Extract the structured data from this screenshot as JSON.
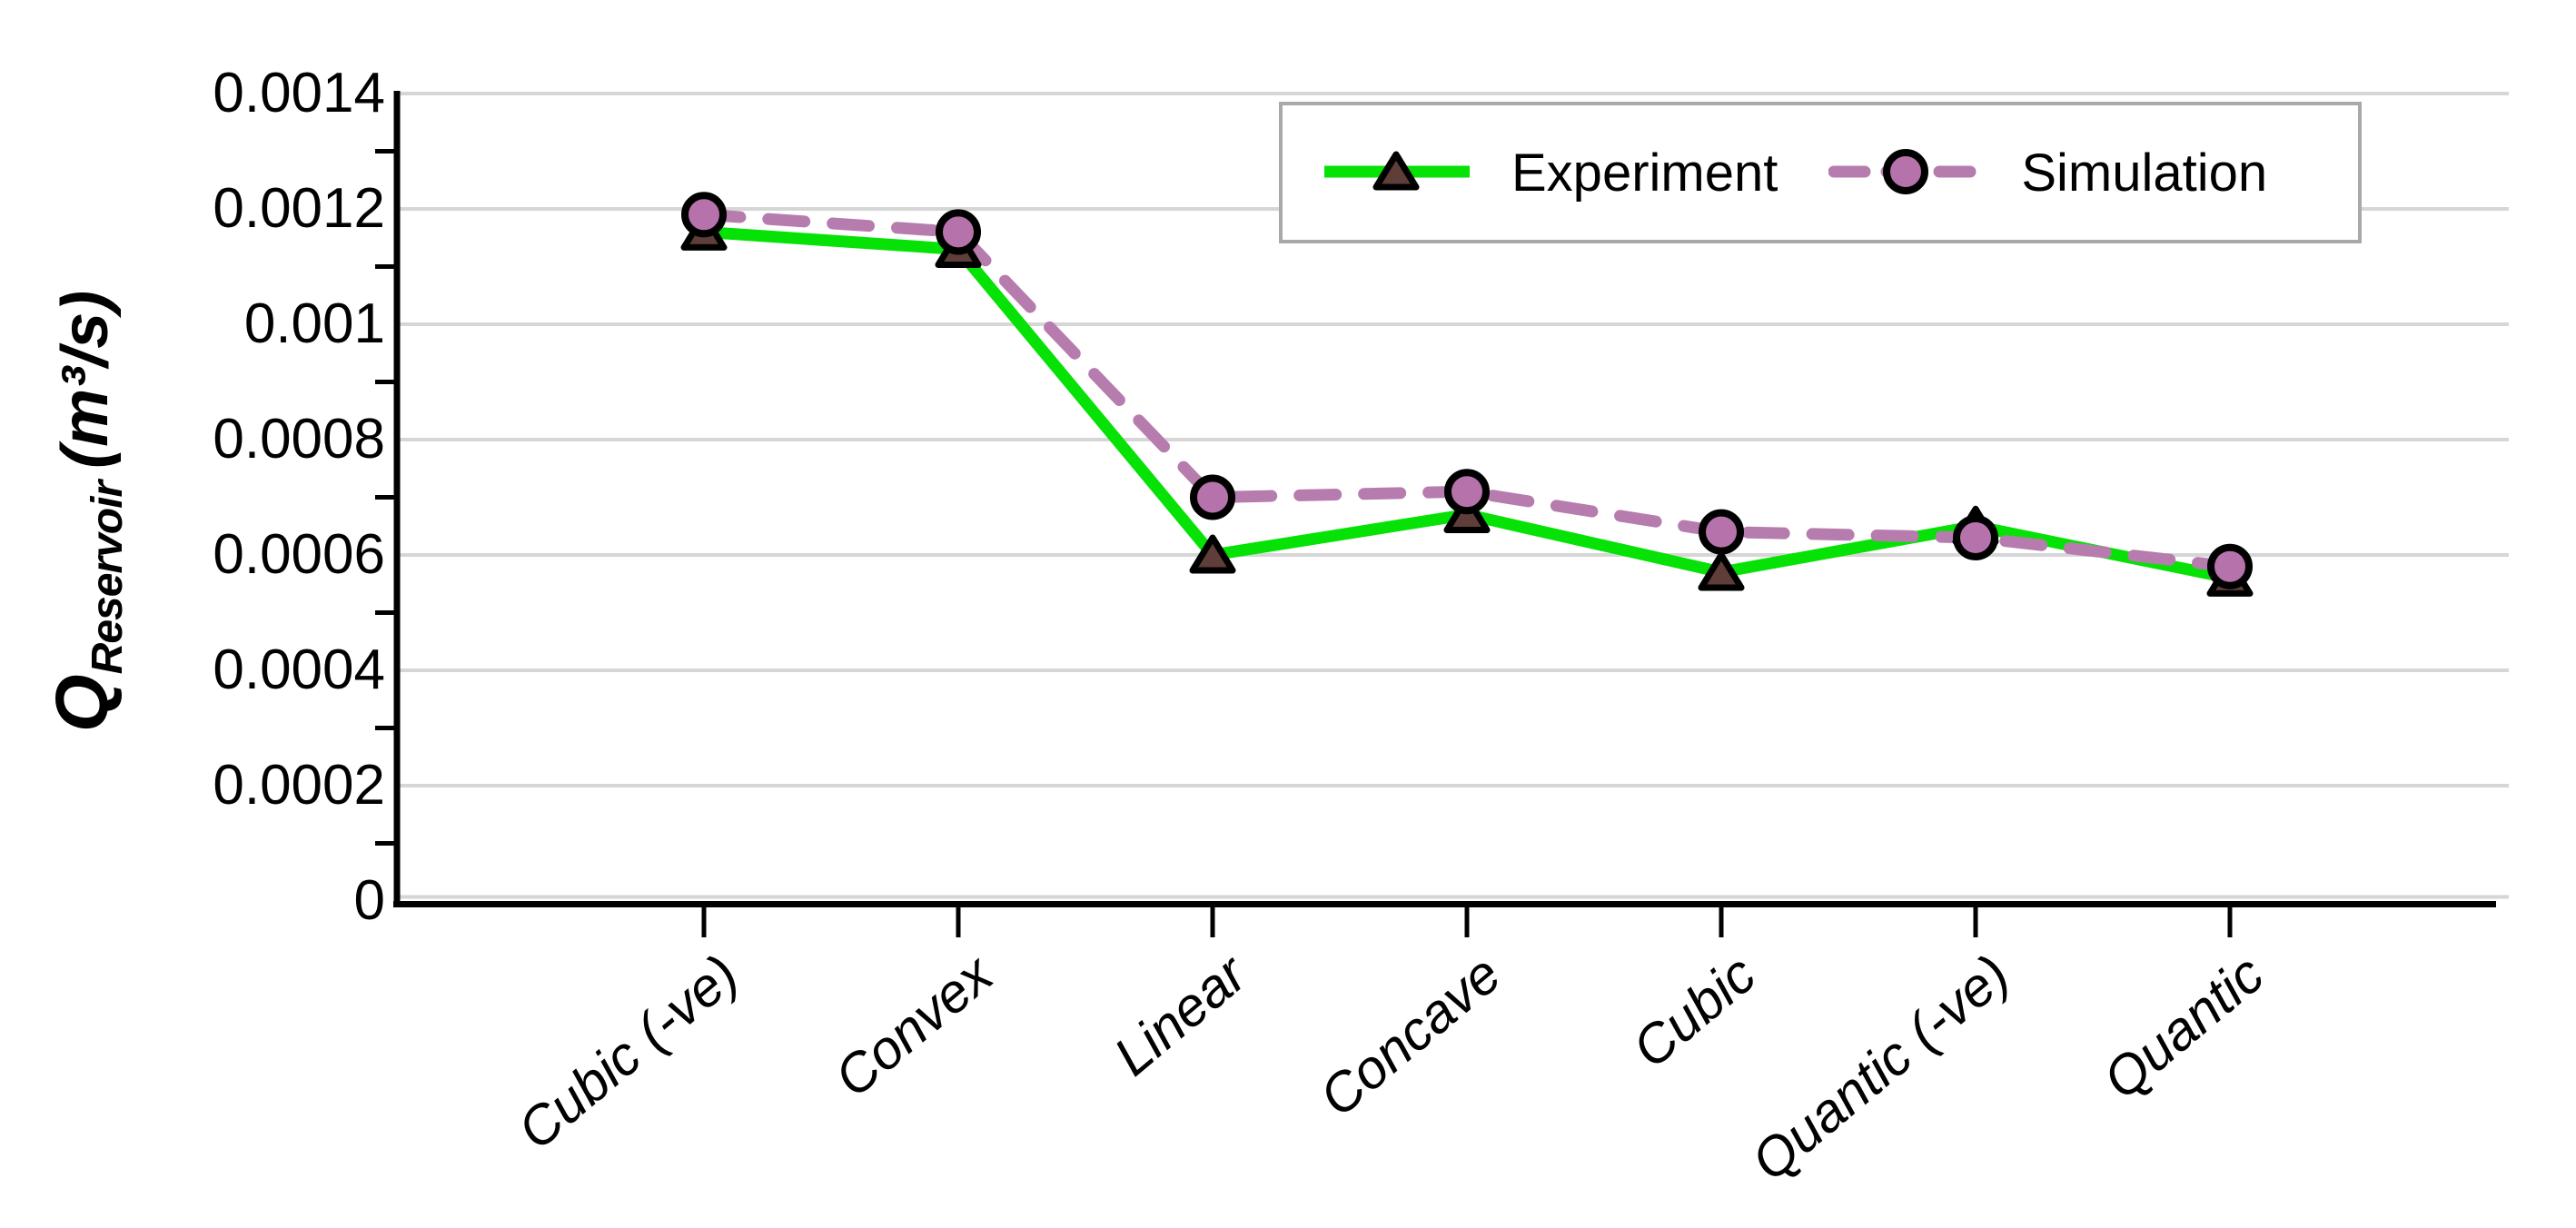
{
  "chart_data": {
    "type": "line",
    "title": "",
    "y_axis": {
      "label_main": "Q",
      "label_sub": "Reservoir",
      "label_units": "(m³/s)",
      "ylim": [
        0,
        0.0014
      ],
      "ticks": [
        0,
        0.0002,
        0.0004,
        0.0006,
        0.0008,
        0.001,
        0.0012,
        0.0014
      ],
      "tick_labels": [
        "0",
        "0.0002",
        "0.0004",
        "0.0006",
        "0.0008",
        "0.001",
        "0.0012",
        "0.0014"
      ]
    },
    "categories": [
      "Cubic (-ve)",
      "Convex",
      "Linear",
      "Concave",
      "Cubic",
      "Quantic (-ve)",
      "Quantic"
    ],
    "series": [
      {
        "name": "Experiment",
        "line_style": "solid",
        "line_color": "#06e206",
        "marker": "triangle",
        "marker_fill": "#5f3d38",
        "marker_stroke": "#000000",
        "values": [
          0.00116,
          0.00113,
          0.0006,
          0.00067,
          0.00057,
          0.00065,
          0.00056
        ]
      },
      {
        "name": "Simulation",
        "line_style": "dashed",
        "line_color": "#b77cae",
        "marker": "circle",
        "marker_fill": "#b672aa",
        "marker_stroke": "#000000",
        "values": [
          0.00119,
          0.00116,
          0.0007,
          0.00071,
          0.00064,
          0.00063,
          0.00058
        ]
      }
    ],
    "grid": true,
    "legend_position": "top-right-inside",
    "gridline_color": "#d6d6d6",
    "axis_color": "#000000"
  }
}
